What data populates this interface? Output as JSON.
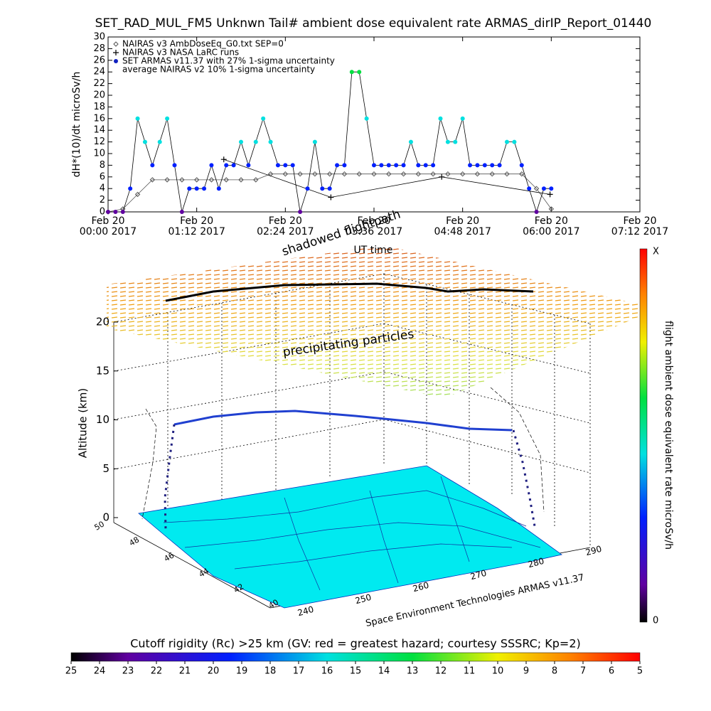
{
  "chart_data": [
    {
      "type": "scatter",
      "title": "SET_RAD_MUL_FM5 Unknwn Tail#  ambient dose equivalent rate ARMAS_dirIP_Report_01440",
      "ylabel": "dH*(10)/dt microSv/h",
      "xlabel": "UT time",
      "xlim": [
        0,
        432
      ],
      "xticks": [
        {
          "value": 0,
          "label": "Feb 20\n00:00 2017"
        },
        {
          "value": 72,
          "label": "Feb 20\n01:12 2017"
        },
        {
          "value": 144,
          "label": "Feb 20\n02:24 2017"
        },
        {
          "value": 216,
          "label": "Feb 20\n03:36 2017"
        },
        {
          "value": 288,
          "label": "Feb 20\n04:48 2017"
        },
        {
          "value": 360,
          "label": "Feb 20\n06:00 2017"
        },
        {
          "value": 432,
          "label": "Feb 20\n07:12 2017"
        }
      ],
      "ylim": [
        0,
        30
      ],
      "yticks": [
        0,
        2,
        4,
        6,
        8,
        10,
        12,
        14,
        16,
        18,
        20,
        22,
        24,
        26,
        28,
        30
      ],
      "color_by_value": true,
      "series": [
        {
          "name": "NAIRAS v3 AmbDoseEq_G0.txt SEP=0",
          "color": "#555555",
          "marker": "diamond",
          "x": [
            0,
            12,
            24,
            36,
            48,
            60,
            72,
            84,
            96,
            108,
            120,
            132,
            144,
            156,
            168,
            180,
            192,
            204,
            216,
            228,
            240,
            252,
            264,
            276,
            288,
            300,
            312,
            324,
            336,
            348,
            360
          ],
          "values": [
            0,
            0.5,
            3,
            5.5,
            5.5,
            5.5,
            5.5,
            5.5,
            5.5,
            5.5,
            5.5,
            6.5,
            6.5,
            6.5,
            6.5,
            6.5,
            6.5,
            6.5,
            6.5,
            6.5,
            6.5,
            6.5,
            6.5,
            6.5,
            6.5,
            6.5,
            6.5,
            6.5,
            6.5,
            4,
            0.5
          ]
        },
        {
          "name": "NAIRAS v3 NASA LaRC runs",
          "color": "#000000",
          "marker": "plus",
          "x": [
            94,
            181,
            271,
            359
          ],
          "values": [
            9,
            2.5,
            6,
            3
          ]
        },
        {
          "name": "SET ARMAS v11.37 with 27% 1-sigma uncertainty",
          "color": "#1020c0",
          "marker": "circle",
          "x": [
            0,
            6,
            12,
            18,
            24,
            30,
            36,
            42,
            48,
            54,
            60,
            66,
            72,
            78,
            84,
            90,
            96,
            102,
            108,
            114,
            120,
            126,
            132,
            138,
            144,
            150,
            156,
            162,
            168,
            174,
            180,
            186,
            192,
            198,
            204,
            210,
            216,
            222,
            228,
            234,
            240,
            246,
            252,
            258,
            264,
            270,
            276,
            282,
            288,
            294,
            300,
            306,
            312,
            318,
            324,
            330,
            336,
            342,
            348,
            354,
            360
          ],
          "values": [
            0,
            0,
            0,
            4,
            16,
            12,
            8,
            12,
            16,
            8,
            0,
            4,
            4,
            4,
            8,
            4,
            8,
            8,
            12,
            8,
            12,
            16,
            12,
            8,
            8,
            8,
            0,
            4,
            12,
            4,
            4,
            8,
            8,
            24,
            24,
            16,
            8,
            8,
            8,
            8,
            8,
            12,
            8,
            8,
            8,
            16,
            12,
            12,
            16,
            8,
            8,
            8,
            8,
            8,
            12,
            12,
            8,
            4,
            0,
            4,
            4
          ]
        },
        {
          "name": "average NAIRAS v2 10% 1-sigma uncertainty"
        }
      ]
    },
    {
      "type": "surface3d",
      "zlabel": "Altitude (km)",
      "zlim": [
        0,
        20
      ],
      "zticks": [
        0,
        5,
        10,
        15,
        20
      ],
      "ylim": [
        50,
        40
      ],
      "yticks": [
        50,
        48,
        46,
        44,
        42,
        40
      ],
      "xlim": [
        240,
        290
      ],
      "xticks": [
        240,
        250,
        260,
        270,
        280,
        290
      ],
      "annotations": [
        "precipitating particles",
        "shadowed flightpath",
        "Space Environment Technologies ARMAS v11.37"
      ],
      "colorbar_label": "flight ambient dose equivalent rate microSv/h",
      "colorbar_end_labels": [
        "0",
        "X"
      ]
    },
    {
      "type": "colorbar",
      "title": "Cutoff rigidity (Rc) >25 km (GV: red = greatest hazard; courtesy SSSRC; Kp=2)",
      "xlim": [
        25,
        5
      ],
      "xticks": [
        25,
        24,
        23,
        22,
        21,
        20,
        19,
        18,
        17,
        16,
        15,
        14,
        13,
        12,
        11,
        10,
        9,
        8,
        7,
        6,
        5
      ]
    }
  ]
}
